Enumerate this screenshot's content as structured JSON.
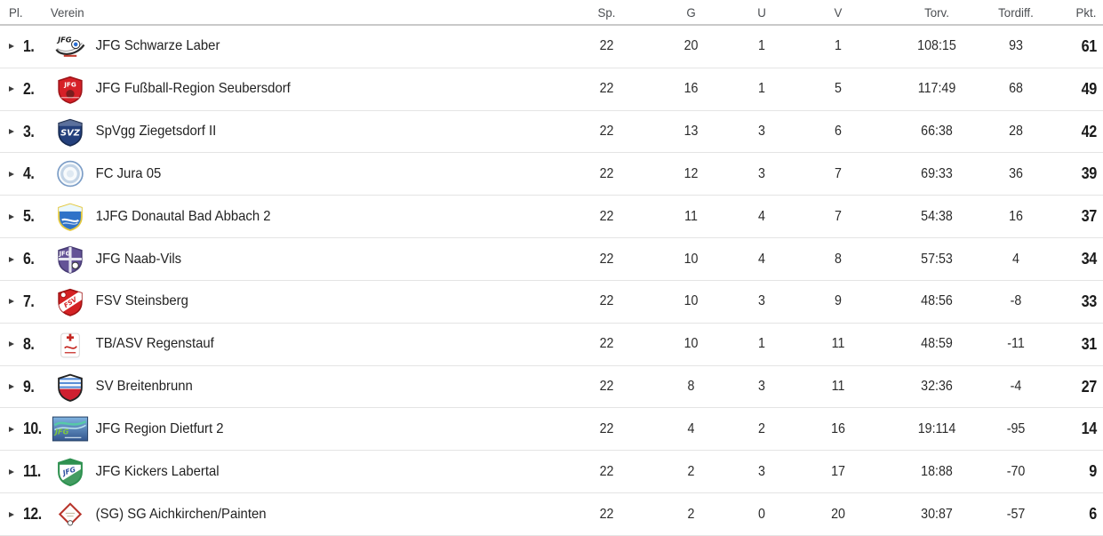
{
  "table": {
    "columns": {
      "pl": "Pl.",
      "verein": "Verein",
      "sp": "Sp.",
      "g": "G",
      "u": "U",
      "v": "V",
      "torv": "Torv.",
      "tordiff": "Tordiff.",
      "pkt": "Pkt."
    },
    "rows": [
      {
        "place": "1.",
        "team": "JFG Schwarze Laber",
        "sp": "22",
        "g": "20",
        "u": "1",
        "v": "1",
        "torv": "108:15",
        "tordiff": "93",
        "pkt": "61",
        "badge": {
          "shape": "swoosh",
          "c1": "#2b2b2b",
          "c2": "#c0392b",
          "c3": "#2b6fd4",
          "text": "JFG",
          "textColor": "#1a1a1a"
        }
      },
      {
        "place": "2.",
        "team": "JFG Fußball-Region Seubersdorf",
        "sp": "22",
        "g": "16",
        "u": "1",
        "v": "5",
        "torv": "117:49",
        "tordiff": "68",
        "pkt": "49",
        "badge": {
          "shape": "shield",
          "c1": "#d62027",
          "c2": "#9e1418",
          "c3": "#7a1d1d",
          "text": "JFG",
          "textColor": "#ffffff"
        }
      },
      {
        "place": "3.",
        "team": "SpVgg Ziegetsdorf II",
        "sp": "22",
        "g": "13",
        "u": "3",
        "v": "6",
        "torv": "66:38",
        "tordiff": "28",
        "pkt": "42",
        "badge": {
          "shape": "shield",
          "c1": "#24407c",
          "c2": "#16294f",
          "c3": "",
          "text": "SVZ",
          "textColor": "#ffffff"
        }
      },
      {
        "place": "4.",
        "team": "FC Jura 05",
        "sp": "22",
        "g": "12",
        "u": "3",
        "v": "7",
        "torv": "69:33",
        "tordiff": "36",
        "pkt": "39",
        "badge": {
          "shape": "ringed",
          "c1": "#f7fafc",
          "c2": "#7a9cc6",
          "c3": "#c3d4e6",
          "text": "",
          "textColor": ""
        }
      },
      {
        "place": "5.",
        "team": "1JFG Donautal Bad Abbach 2",
        "sp": "22",
        "g": "11",
        "u": "4",
        "v": "7",
        "torv": "54:38",
        "tordiff": "16",
        "pkt": "37",
        "badge": {
          "shape": "banner-shield",
          "c1": "#2f72c8",
          "c2": "#e3c83f",
          "c3": "#eaf7fc",
          "text": "",
          "textColor": "#35aacc"
        }
      },
      {
        "place": "6.",
        "team": "JFG Naab-Vils",
        "sp": "22",
        "g": "10",
        "u": "4",
        "v": "8",
        "torv": "57:53",
        "tordiff": "4",
        "pkt": "34",
        "badge": {
          "shape": "quartered",
          "c1": "#645397",
          "c2": "#463a72",
          "c3": "#e6e6f0",
          "text": "JFG",
          "textColor": "#ffffff"
        }
      },
      {
        "place": "7.",
        "team": "FSV Steinsberg",
        "sp": "22",
        "g": "10",
        "u": "3",
        "v": "9",
        "torv": "48:56",
        "tordiff": "-8",
        "pkt": "33",
        "badge": {
          "shape": "sash",
          "c1": "#d42224",
          "c2": "#9e1212",
          "c3": "#ffffff",
          "text": "FSV",
          "textColor": "#d42224"
        }
      },
      {
        "place": "8.",
        "team": "TB/ASV Regenstauf",
        "sp": "22",
        "g": "10",
        "u": "1",
        "v": "11",
        "torv": "48:59",
        "tordiff": "-11",
        "pkt": "31",
        "badge": {
          "shape": "crest",
          "c1": "#ffffff",
          "c2": "#c4251f",
          "c3": "#d8d8d8",
          "text": "",
          "textColor": "#c4251f"
        }
      },
      {
        "place": "9.",
        "team": "SV Breitenbrunn",
        "sp": "22",
        "g": "8",
        "u": "3",
        "v": "11",
        "torv": "32:36",
        "tordiff": "-4",
        "pkt": "27",
        "badge": {
          "shape": "striped",
          "c1": "#cf2030",
          "c2": "#222222",
          "c3": "#5b8fd8",
          "text": "",
          "textColor": ""
        }
      },
      {
        "place": "10.",
        "team": "JFG Region Dietfurt 2",
        "sp": "22",
        "g": "4",
        "u": "2",
        "v": "16",
        "torv": "19:114",
        "tordiff": "-95",
        "pkt": "14",
        "badge": {
          "shape": "rect-wave",
          "c1": "#33568e",
          "c2": "#7fb3e0",
          "c3": "#57c9a8",
          "text": "JFG",
          "textColor": "#7fc93f"
        }
      },
      {
        "place": "11.",
        "team": "JFG Kickers Labertal",
        "sp": "22",
        "g": "2",
        "u": "3",
        "v": "17",
        "torv": "18:88",
        "tordiff": "-70",
        "pkt": "9",
        "badge": {
          "shape": "diag",
          "c1": "#ffffff",
          "c2": "#2f9150",
          "c3": "#2f9150",
          "text": "JFG",
          "textColor": "#2b4fa0"
        }
      },
      {
        "place": "12.",
        "team": "(SG) SG Aichkirchen/Painten",
        "sp": "22",
        "g": "2",
        "u": "0",
        "v": "20",
        "torv": "30:87",
        "tordiff": "-57",
        "pkt": "6",
        "badge": {
          "shape": "diamond",
          "c1": "#fdfdfb",
          "c2": "#b8352b",
          "c3": "#c9bfa8",
          "text": "",
          "textColor": ""
        }
      }
    ],
    "colors": {
      "header_text": "#4b4e52",
      "row_text": "#222222",
      "points_text": "#1b1b1b",
      "row_separator": "#e4e4e4",
      "header_separator": "#c9c9c9",
      "arrow": "#3c3c3c"
    }
  }
}
